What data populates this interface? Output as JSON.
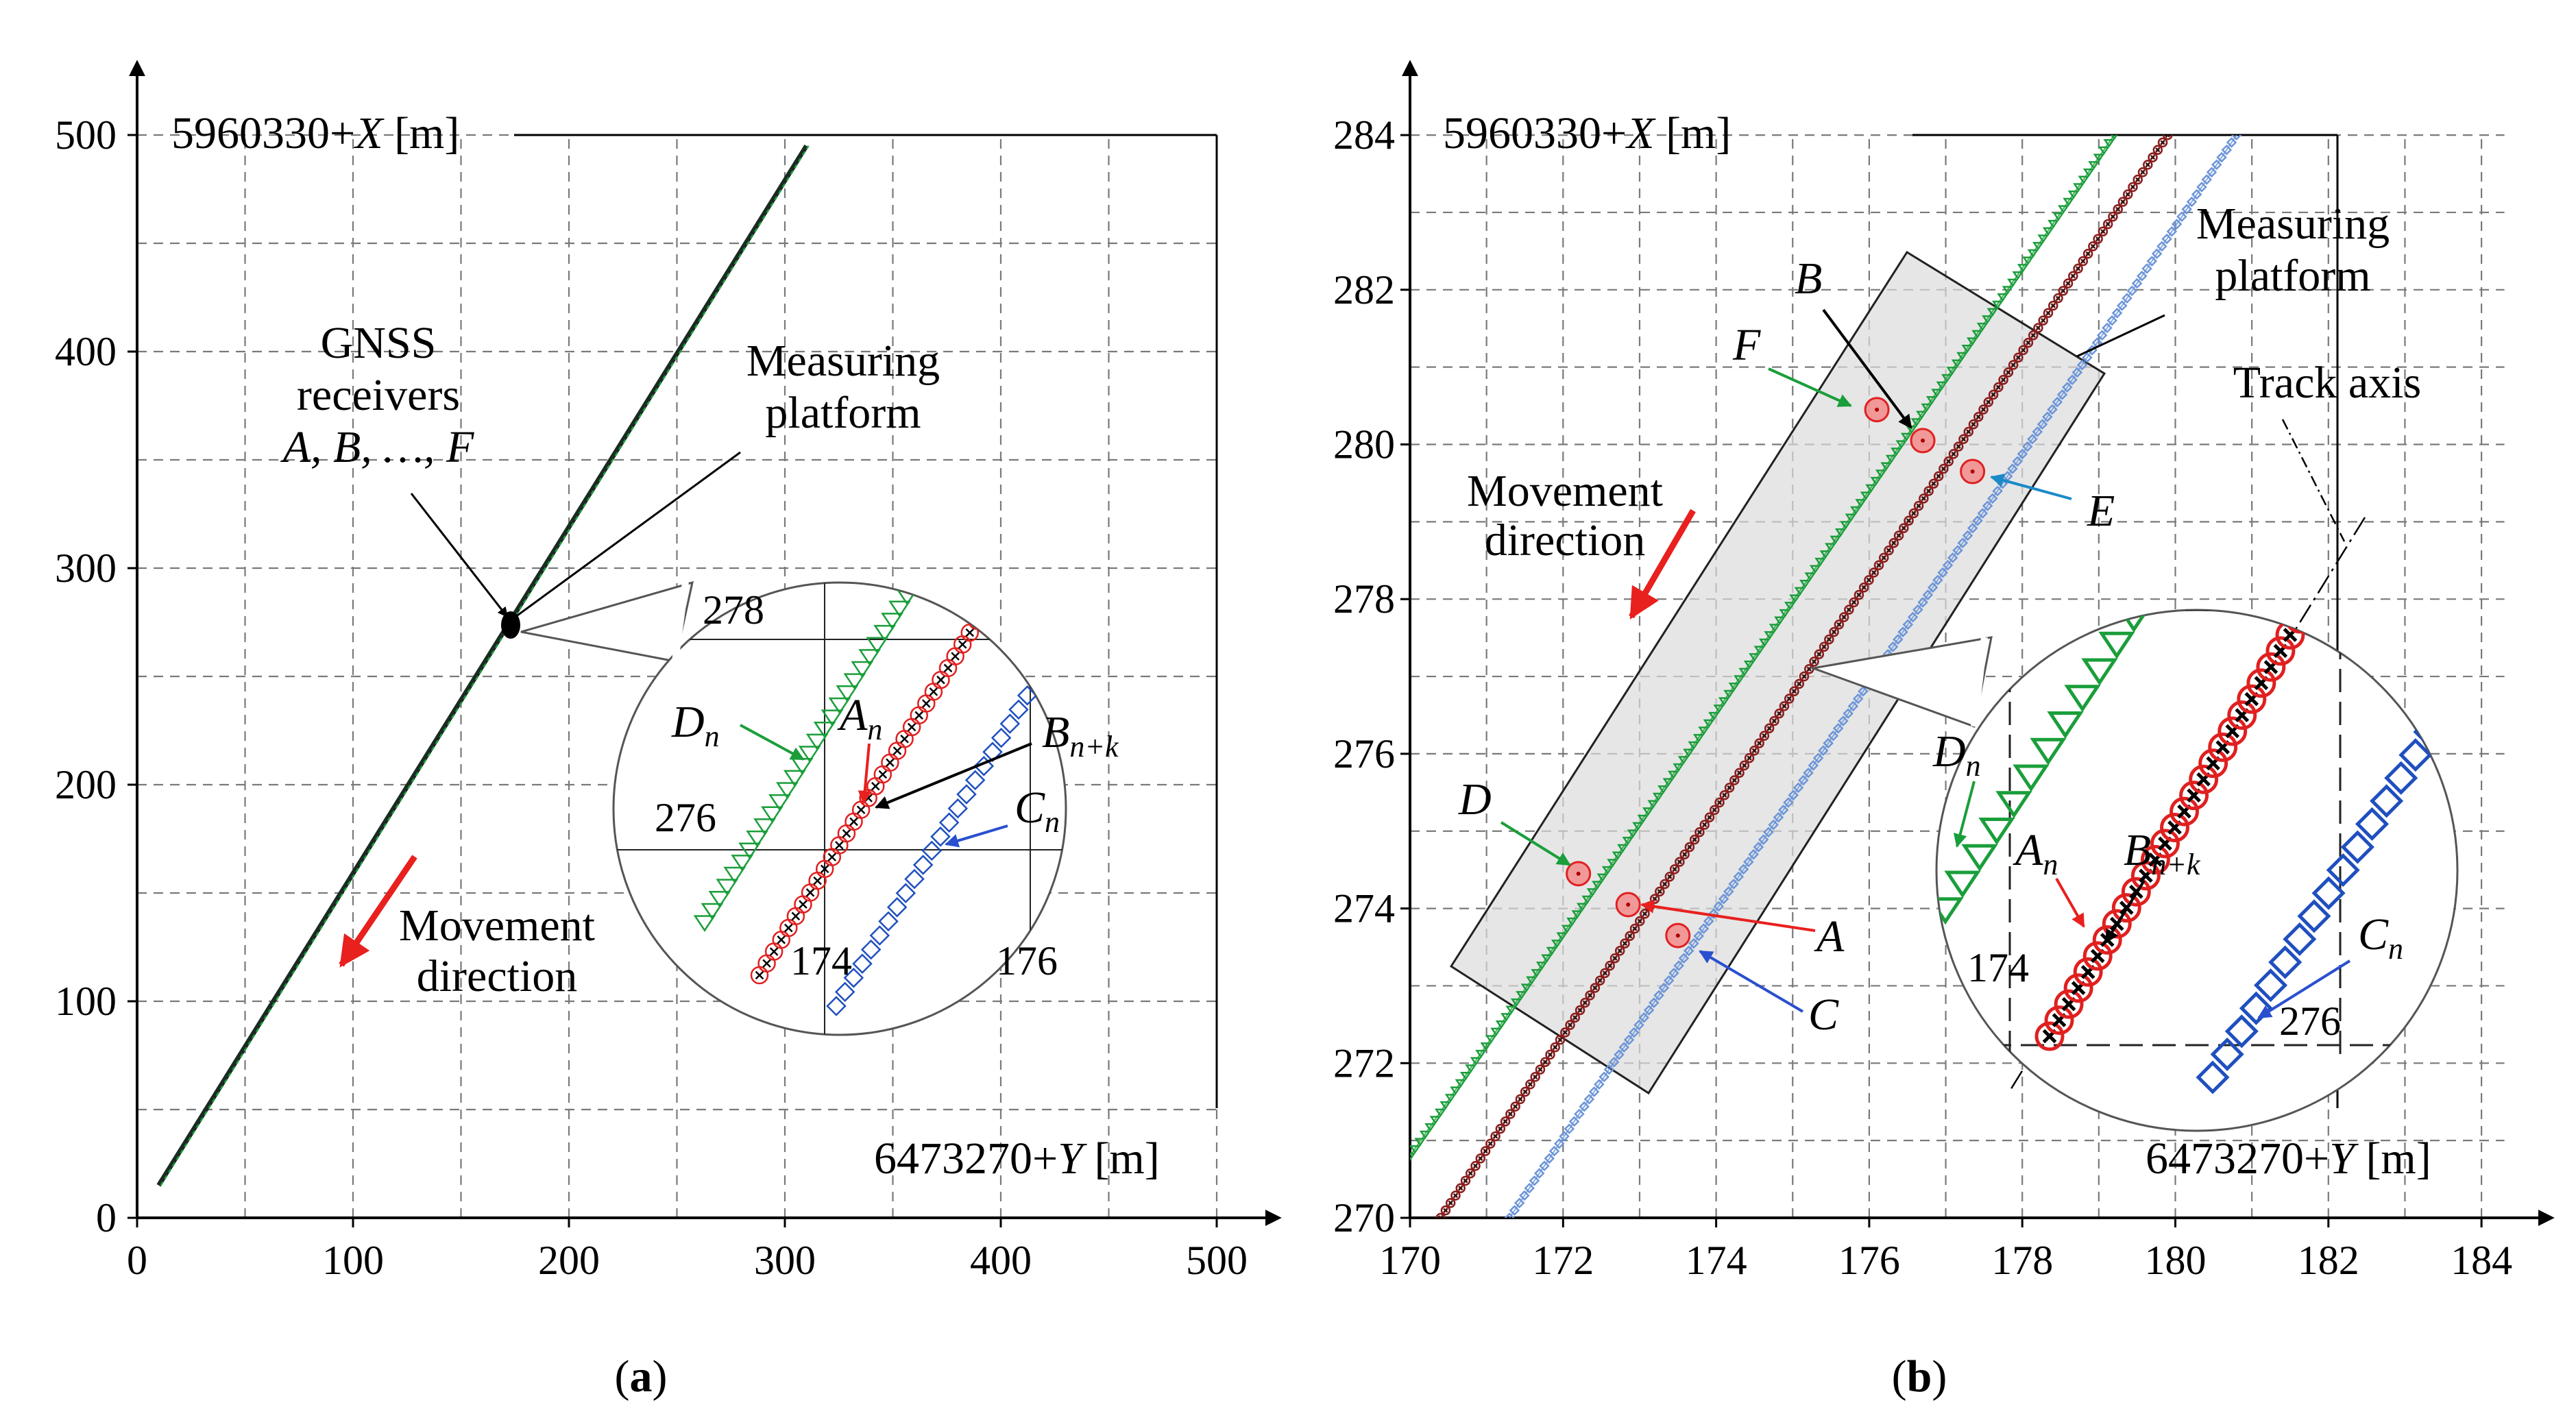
{
  "colors": {
    "green": "#1a9e3a",
    "red": "#e02020",
    "darkred": "#8b1a1a",
    "blue": "#1f4fbf",
    "lightblue": "#6c95d8",
    "dark": "#1b2a22",
    "arrow_green": "#1a9e3a",
    "arrow_red": "#e8201e",
    "arrow_blue": "#2a4fcf",
    "arrow_cyan": "#1a8ac8"
  },
  "chart_data": [
    {
      "type": "scatter",
      "panel_label": "a",
      "y_axis_label": "5960330+",
      "y_axis_var": "X",
      "y_axis_unit": " [m]",
      "x_axis_label": "6473270+",
      "x_axis_var": "Y",
      "x_axis_unit": " [m]",
      "xlim": [
        0,
        500
      ],
      "ylim": [
        0,
        500
      ],
      "x_ticks": [
        "0",
        "100",
        "200",
        "300",
        "400",
        "500"
      ],
      "y_ticks": [
        "0",
        "100",
        "200",
        "300",
        "400",
        "500"
      ],
      "grid": true,
      "series": [
        {
          "name": "trajectory",
          "points": [
            [
              10,
              15
            ],
            [
              310,
              495
            ]
          ]
        }
      ],
      "receiver_location": [
        173,
        273
      ],
      "annotations": {
        "gnss_line1": "GNSS",
        "gnss_line2": "receivers",
        "gnss_line3": "A, B, …, F",
        "platform_line1": "Measuring",
        "platform_line2": "platform",
        "movement_line1": "Movement",
        "movement_line2": "direction"
      },
      "inset": {
        "x_ticks": [
          "174",
          "176"
        ],
        "y_ticks": [
          "276",
          "278"
        ],
        "labels": {
          "D": "D",
          "D_sub": "n",
          "A": "A",
          "A_sub": "n",
          "B": "B",
          "B_sub": "n+k",
          "C": "C",
          "C_sub": "n"
        }
      }
    },
    {
      "type": "scatter",
      "panel_label": "b",
      "y_axis_label": "5960330+",
      "y_axis_var": "X",
      "y_axis_unit": " [m]",
      "x_axis_label": "6473270+",
      "x_axis_var": "Y",
      "x_axis_unit": " [m]",
      "xlim": [
        170,
        185
      ],
      "ylim": [
        270,
        285
      ],
      "x_ticks": [
        "170",
        "172",
        "174",
        "176",
        "178",
        "180",
        "182",
        "184"
      ],
      "y_ticks": [
        "270",
        "272",
        "274",
        "276",
        "278",
        "280",
        "282",
        "284"
      ],
      "grid": true,
      "series": [
        {
          "name": "D/F receivers",
          "color": "green",
          "points": [
            [
              170.0,
              270.8
            ],
            [
              179.2,
              284.0
            ]
          ]
        },
        {
          "name": "A/B receivers",
          "color": "darkred",
          "points": [
            [
              170.4,
              270.0
            ],
            [
              179.9,
              284.0
            ]
          ]
        },
        {
          "name": "C/E receivers",
          "color": "lightblue",
          "points": [
            [
              171.3,
              270.0
            ],
            [
              180.8,
              284.0
            ]
          ]
        }
      ],
      "receivers": [
        {
          "name": "F",
          "x": 176.1,
          "y": 280.45
        },
        {
          "name": "B",
          "x": 176.7,
          "y": 280.05
        },
        {
          "name": "E",
          "x": 177.35,
          "y": 279.65
        },
        {
          "name": "D",
          "x": 172.2,
          "y": 274.45
        },
        {
          "name": "A",
          "x": 172.85,
          "y": 274.05
        },
        {
          "name": "C",
          "x": 173.5,
          "y": 273.65
        }
      ],
      "annotations": {
        "platform_line1": "Measuring",
        "platform_line2": "platform",
        "track_axis": "Track axis",
        "movement_line1": "Movement",
        "movement_line2": "direction"
      },
      "inset": {
        "x_ticks": [
          "174"
        ],
        "y_ticks": [
          "276"
        ],
        "labels": {
          "D": "D",
          "D_sub": "n",
          "A": "A",
          "A_sub": "n",
          "B": "B",
          "B_sub": "n+k",
          "C": "C",
          "C_sub": "n"
        }
      }
    }
  ]
}
